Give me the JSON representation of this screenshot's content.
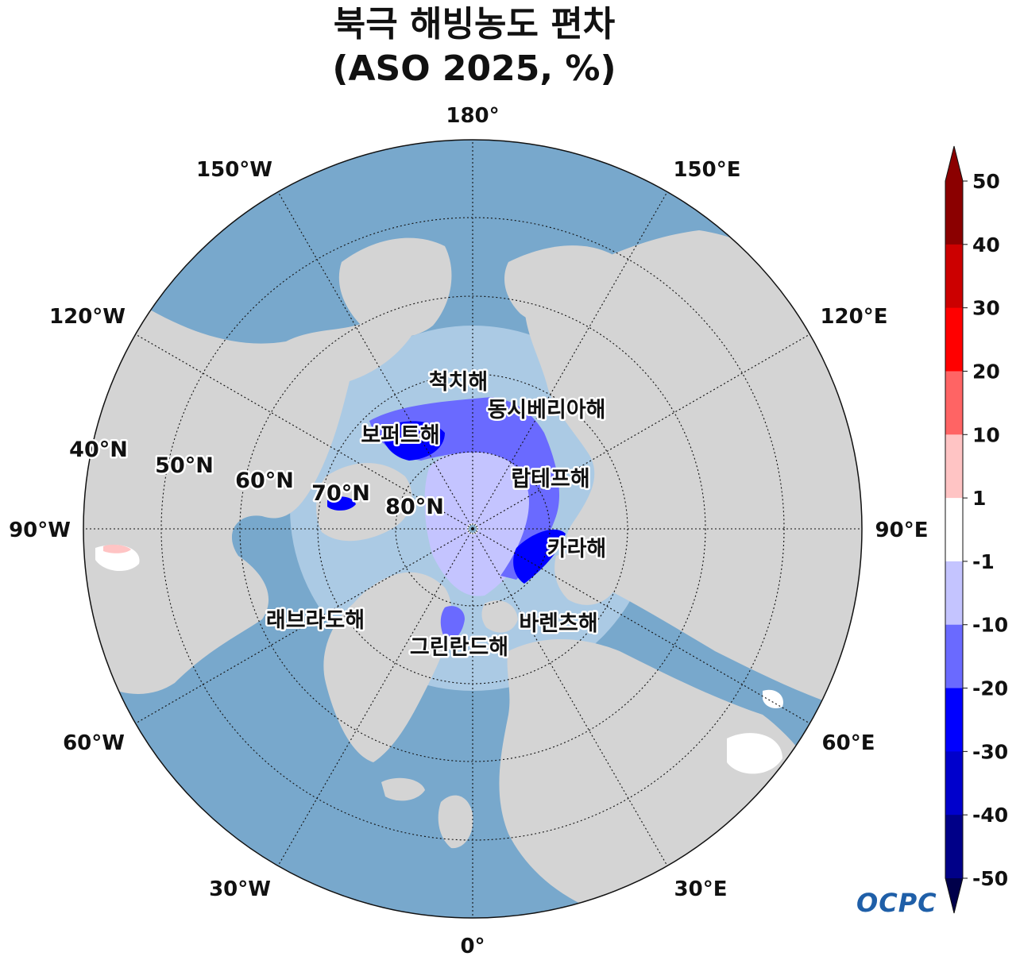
{
  "title": {
    "line1": "북극 해빙농도 편차",
    "line2": "(ASO 2025, %)"
  },
  "map": {
    "projection": "north-polar-stereographic",
    "longitude_labels": [
      "180°",
      "150°E",
      "120°E",
      "90°E",
      "60°E",
      "30°E",
      "0°",
      "30°W",
      "60°W",
      "90°W",
      "120°W",
      "150°W"
    ],
    "latitude_labels": [
      "40°N",
      "50°N",
      "60°N",
      "70°N",
      "80°N"
    ],
    "sea_labels": [
      "척치해",
      "동시베리아해",
      "보퍼트해",
      "랍테프해",
      "카라해",
      "바렌츠해",
      "그린란드해",
      "래브라도해"
    ],
    "colors": {
      "land": "#d4d4d4",
      "ocean_deep": "#78a8cc",
      "ocean_shallow": "#c8dcee",
      "ice_anomaly_-1_to_-10": "#c4c4ff",
      "ice_anomaly_-10_to_-20": "#6a6aff",
      "ice_anomaly_-20_to_-30": "#0000ff",
      "ice_anomaly_-30_to_-40": "#0000cc"
    }
  },
  "colorbar": {
    "tick_labels": [
      "50",
      "40",
      "30",
      "20",
      "10",
      "1",
      "-1",
      "-10",
      "-20",
      "-30",
      "-40",
      "-50"
    ],
    "colors": [
      "#8b0000",
      "#cc0000",
      "#ff0000",
      "#ff6464",
      "#ffc4c4",
      "#ffffff",
      "#c4c4ff",
      "#6a6aff",
      "#0000ff",
      "#0000cc",
      "#000088",
      "#00004a"
    ],
    "extend_max_color": "#8b0000",
    "extend_min_color": "#00004a"
  },
  "logo": {
    "text": "OCPC"
  }
}
